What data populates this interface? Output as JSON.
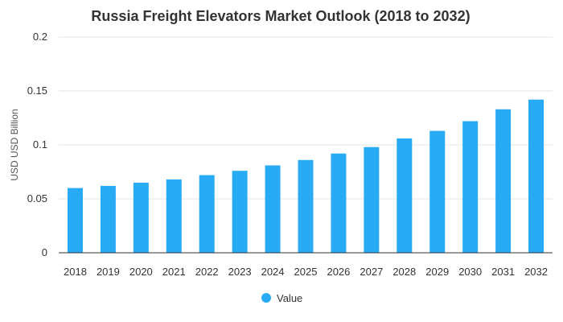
{
  "chart_data": {
    "type": "bar",
    "title": "Russia Freight Elevators Market Outlook (2018 to 2032)",
    "xlabel": "",
    "ylabel": "USD USD Billion",
    "categories": [
      "2018",
      "2019",
      "2020",
      "2021",
      "2022",
      "2023",
      "2024",
      "2025",
      "2026",
      "2027",
      "2028",
      "2029",
      "2030",
      "2031",
      "2032"
    ],
    "series": [
      {
        "name": "Value",
        "values": [
          0.06,
          0.062,
          0.065,
          0.068,
          0.072,
          0.076,
          0.081,
          0.086,
          0.092,
          0.098,
          0.106,
          0.113,
          0.122,
          0.133,
          0.142
        ]
      }
    ],
    "ylim": [
      0,
      0.2
    ],
    "yticks": [
      0,
      0.05,
      0.1,
      0.15,
      0.2
    ],
    "ytick_labels": [
      "0",
      "0.05",
      "0.1",
      "0.15",
      "0.2"
    ],
    "grid": true,
    "legend_position": "bottom-center",
    "colors": {
      "bar": "#29aaf4",
      "grid": "#e6e6e6",
      "axis": "#333333"
    }
  }
}
